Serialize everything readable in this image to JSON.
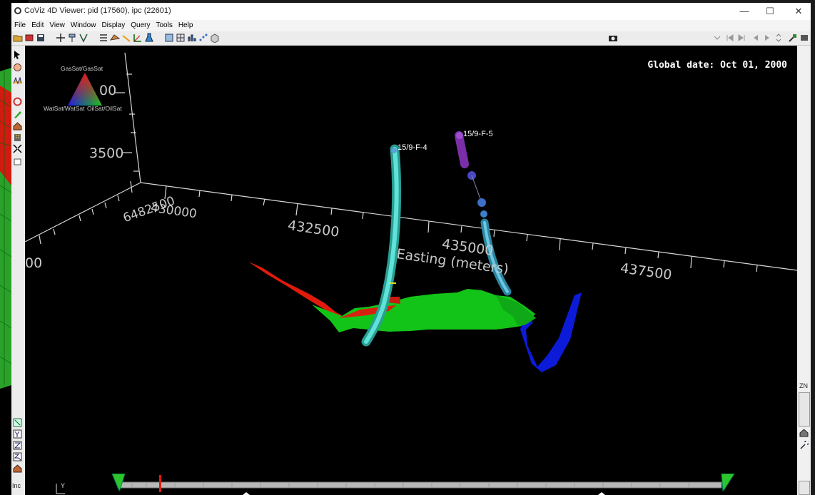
{
  "window": {
    "title": "CoViz 4D Viewer:  pid (17560),  ipc (22601)",
    "minimize": "—",
    "maximize": "☐",
    "close": "✕"
  },
  "menu": [
    "File",
    "Edit",
    "View",
    "Window",
    "Display",
    "Query",
    "Tools",
    "Help"
  ],
  "viewport": {
    "global_date": "Global date: Oct 01, 2000",
    "legend": {
      "top": "GasSat/GasSat",
      "bottom_left": "WatSat/WatSat",
      "bottom_right": "OilSat/OilSat",
      "top_value": "00"
    },
    "axes": {
      "vertical_tick": "3500",
      "north_tick": "6482500",
      "east_ticks": [
        "430000",
        "432500",
        "435000",
        "437500"
      ],
      "left_partial": "00",
      "easting_label": "Easting (meters)"
    },
    "wells": [
      {
        "name": "15/9-F-4",
        "color": "#44d2c4"
      },
      {
        "name": "15/9-F-5",
        "color": "#8a3fb0"
      }
    ]
  },
  "right_panel": {
    "label": "ZN"
  },
  "left_tools": {
    "inc_label": "Inc"
  },
  "axis_triad": {
    "label": "Y"
  },
  "colors": {
    "oil": "#e01b0b",
    "water": "#0c1bd8",
    "gas_green": "#12c418"
  }
}
